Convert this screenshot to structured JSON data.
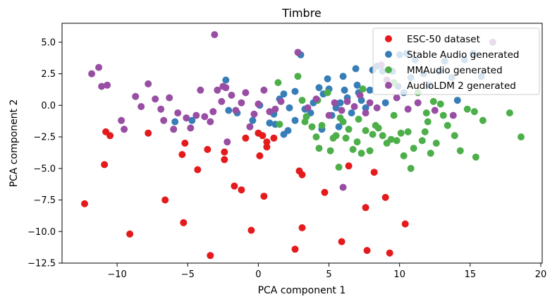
{
  "chart_data": {
    "type": "scatter",
    "title": "Timbre",
    "xlabel": "PCA component 1",
    "ylabel": "PCA component 2",
    "xlim": [
      -13.9,
      20.1
    ],
    "ylim": [
      -12.5,
      6.5
    ],
    "xticks": [
      -10,
      -5,
      0,
      5,
      10,
      15,
      20
    ],
    "xtick_labels": [
      "−10",
      "−5",
      "0",
      "5",
      "10",
      "15",
      "20"
    ],
    "yticks": [
      5,
      2.5,
      0,
      -2.5,
      -5,
      -7.5,
      -10,
      -12.5
    ],
    "ytick_labels": [
      "5.0",
      "2.5",
      "0.0",
      "−2.5",
      "−5.0",
      "−7.5",
      "−10.0",
      "−12.5"
    ],
    "grid": false,
    "legend_position": "top-right",
    "series": [
      {
        "name": "ESC-50 dataset",
        "color": "#e41a1c",
        "points": [
          [
            -12.3,
            -7.8
          ],
          [
            -10.8,
            -2.1
          ],
          [
            -10.5,
            -2.4
          ],
          [
            -10.9,
            -4.7
          ],
          [
            -9.1,
            -10.2
          ],
          [
            -7.8,
            -2.2
          ],
          [
            -6.6,
            -7.5
          ],
          [
            -5.3,
            -9.3
          ],
          [
            -5.2,
            -3.0
          ],
          [
            -5.4,
            -3.9
          ],
          [
            -4.3,
            -5.1
          ],
          [
            -3.6,
            -3.5
          ],
          [
            -3.4,
            -11.9
          ],
          [
            -2.4,
            -4.3
          ],
          [
            -2.4,
            -3.7
          ],
          [
            -1.7,
            -6.4
          ],
          [
            -1.2,
            -6.7
          ],
          [
            -0.5,
            -9.9
          ],
          [
            -0.9,
            -2.6
          ],
          [
            0,
            -2.2
          ],
          [
            0.3,
            -2.4
          ],
          [
            0.6,
            -3.3
          ],
          [
            0.6,
            -2.9
          ],
          [
            1.1,
            -2.6
          ],
          [
            0.1,
            -4.0
          ],
          [
            0.4,
            -7.2
          ],
          [
            2.6,
            -11.4
          ],
          [
            2.9,
            -5.2
          ],
          [
            3.1,
            -5.5
          ],
          [
            3.1,
            -9.7
          ],
          [
            4.7,
            -6.9
          ],
          [
            5.9,
            -10.8
          ],
          [
            6.4,
            -4.8
          ],
          [
            7.6,
            -8.1
          ],
          [
            7.7,
            -11.5
          ],
          [
            8.2,
            -5.3
          ],
          [
            9.0,
            -7.3
          ],
          [
            9.3,
            -11.7
          ],
          [
            10.4,
            -9.4
          ]
        ]
      },
      {
        "name": "Stable Audio generated",
        "color": "#377eb8",
        "points": [
          [
            -5.9,
            -1.3
          ],
          [
            -4.7,
            -1.2
          ],
          [
            -2.3,
            2.0
          ],
          [
            -2.1,
            -0.4
          ],
          [
            -1.5,
            -0.6
          ],
          [
            -0.4,
            -1.2
          ],
          [
            0.1,
            0.0
          ],
          [
            0.8,
            -1.4
          ],
          [
            1.1,
            -0.7
          ],
          [
            1.2,
            -1.5
          ],
          [
            1.5,
            0.5
          ],
          [
            1.8,
            0.9
          ],
          [
            1.8,
            -2.3
          ],
          [
            2.1,
            -2.0
          ],
          [
            2.2,
            -0.2
          ],
          [
            2.6,
            1.1
          ],
          [
            2.6,
            -1.2
          ],
          [
            3.0,
            4.0
          ],
          [
            3.3,
            -0.3
          ],
          [
            3.7,
            -0.6
          ],
          [
            3.9,
            0.2
          ],
          [
            4.3,
            1.4
          ],
          [
            4.5,
            -1.9
          ],
          [
            4.6,
            0.9
          ],
          [
            4.9,
            2.1
          ],
          [
            5.0,
            1.3
          ],
          [
            5.2,
            -0.8
          ],
          [
            5.5,
            -0.2
          ],
          [
            5.7,
            -1.7
          ],
          [
            5.8,
            0.2
          ],
          [
            6.0,
            2.3
          ],
          [
            6.1,
            1.2
          ],
          [
            6.3,
            0.6
          ],
          [
            6.6,
            -0.6
          ],
          [
            6.9,
            2.9
          ],
          [
            7.0,
            1.6
          ],
          [
            7.1,
            1.0
          ],
          [
            7.3,
            0.4
          ],
          [
            7.6,
            -0.2
          ],
          [
            7.9,
            1.2
          ],
          [
            8.1,
            2.8
          ],
          [
            8.4,
            3.1
          ],
          [
            8.8,
            2.7
          ],
          [
            9.0,
            0.2
          ],
          [
            9.5,
            2.7
          ],
          [
            9.9,
            1.5
          ],
          [
            10.0,
            4.0
          ],
          [
            10.3,
            1.0
          ],
          [
            10.5,
            4.1
          ],
          [
            10.8,
            2.2
          ],
          [
            11.1,
            3.6
          ],
          [
            11.7,
            2.5
          ],
          [
            12.1,
            1.6
          ],
          [
            12.8,
            2.7
          ],
          [
            13.2,
            3.5
          ],
          [
            13.7,
            2.2
          ],
          [
            14.1,
            0.4
          ],
          [
            14.6,
            3.6
          ],
          [
            15.2,
            4.1
          ],
          [
            15.8,
            2.3
          ]
        ]
      },
      {
        "name": "MMAudio generated",
        "color": "#4daf4a",
        "points": [
          [
            1.5,
            -1.5
          ],
          [
            1.4,
            1.8
          ],
          [
            2.8,
            2.3
          ],
          [
            3.1,
            0.4
          ],
          [
            3.3,
            -1.3
          ],
          [
            3.4,
            -0.9
          ],
          [
            3.8,
            -1.7
          ],
          [
            4.1,
            -2.5
          ],
          [
            4.2,
            0.4
          ],
          [
            4.3,
            -3.4
          ],
          [
            4.5,
            -1.6
          ],
          [
            4.9,
            1.0
          ],
          [
            5.1,
            -3.6
          ],
          [
            5.3,
            -2.6
          ],
          [
            5.5,
            -2.4
          ],
          [
            5.7,
            -4.9
          ],
          [
            5.8,
            -1.0
          ],
          [
            6.0,
            -1.3
          ],
          [
            6.2,
            -2.6
          ],
          [
            6.4,
            -1.9
          ],
          [
            6.7,
            -3.5
          ],
          [
            7.0,
            -2.9
          ],
          [
            7.1,
            -1.1
          ],
          [
            7.3,
            -3.8
          ],
          [
            7.4,
            1.3
          ],
          [
            7.6,
            -2.0
          ],
          [
            7.9,
            -3.6
          ],
          [
            8.1,
            -2.3
          ],
          [
            8.3,
            -1.6
          ],
          [
            8.5,
            -1.8
          ],
          [
            8.8,
            -2.4
          ],
          [
            9.1,
            -3.0
          ],
          [
            9.4,
            -2.7
          ],
          [
            9.6,
            -0.8
          ],
          [
            9.8,
            -2.8
          ],
          [
            10.1,
            -2.2
          ],
          [
            10.3,
            -4.0
          ],
          [
            10.6,
            -2.1
          ],
          [
            10.8,
            -5.0
          ],
          [
            11.0,
            -3.4
          ],
          [
            11.3,
            1.0
          ],
          [
            11.6,
            -2.8
          ],
          [
            11.8,
            -2.1
          ],
          [
            12.0,
            -1.3
          ],
          [
            12.2,
            -3.8
          ],
          [
            12.6,
            -3.0
          ],
          [
            12.9,
            0.1
          ],
          [
            13.1,
            -0.8
          ],
          [
            13.4,
            -1.6
          ],
          [
            13.9,
            -2.4
          ],
          [
            14.3,
            -3.6
          ],
          [
            14.8,
            -0.3
          ],
          [
            15.3,
            -0.5
          ],
          [
            15.4,
            -4.1
          ],
          [
            15.9,
            -1.2
          ],
          [
            17.8,
            -0.6
          ],
          [
            18.6,
            -2.5
          ],
          [
            9.6,
            1.8
          ],
          [
            11.9,
            -0.6
          ],
          [
            12.4,
            0.3
          ]
        ]
      },
      {
        "name": "AudioLDM 2 generated",
        "color": "#984ea3",
        "points": [
          [
            -11.8,
            2.5
          ],
          [
            -11.3,
            3.0
          ],
          [
            -11.1,
            1.5
          ],
          [
            -10.7,
            1.6
          ],
          [
            -9.7,
            -1.2
          ],
          [
            -9.5,
            -1.9
          ],
          [
            -8.7,
            0.7
          ],
          [
            -8.3,
            -0.1
          ],
          [
            -7.8,
            1.7
          ],
          [
            -7.3,
            0.5
          ],
          [
            -6.9,
            -0.3
          ],
          [
            -6.7,
            -1.2
          ],
          [
            -6.3,
            0.6
          ],
          [
            -6.0,
            -1.9
          ],
          [
            -5.7,
            -0.6
          ],
          [
            -5.1,
            -1.0
          ],
          [
            -4.8,
            -1.8
          ],
          [
            -4.4,
            -0.8
          ],
          [
            -4.1,
            1.2
          ],
          [
            -3.8,
            -0.9
          ],
          [
            -3.4,
            -1.3
          ],
          [
            -3.2,
            -0.5
          ],
          [
            -2.9,
            1.2
          ],
          [
            -2.6,
            0.3
          ],
          [
            -2.3,
            1.4
          ],
          [
            -1.9,
            0.8
          ],
          [
            -1.6,
            -0.4
          ],
          [
            -1.2,
            0.2
          ],
          [
            -0.9,
            1.0
          ],
          [
            -0.6,
            -1.7
          ],
          [
            -0.3,
            -0.7
          ],
          [
            0.0,
            0.1
          ],
          [
            0.4,
            1.2
          ],
          [
            0.8,
            -0.5
          ],
          [
            1.2,
            -0.3
          ],
          [
            1.6,
            0.3
          ],
          [
            -3.1,
            5.6
          ],
          [
            -2.5,
            1.5
          ],
          [
            2.8,
            4.2
          ],
          [
            3.5,
            -0.2
          ],
          [
            4.1,
            0.5
          ],
          [
            5.0,
            -0.8
          ],
          [
            5.4,
            0.2
          ],
          [
            5.9,
            -0.4
          ],
          [
            6.3,
            0.3
          ],
          [
            6.8,
            -0.1
          ],
          [
            7.2,
            0.8
          ],
          [
            7.6,
            -0.6
          ],
          [
            7.9,
            0.2
          ],
          [
            8.4,
            -0.2
          ],
          [
            9.1,
            2.0
          ],
          [
            9.8,
            0.6
          ],
          [
            10.6,
            -0.3
          ],
          [
            11.3,
            0.2
          ],
          [
            12.5,
            -0.4
          ],
          [
            13.8,
            -0.8
          ],
          [
            16.6,
            5.0
          ],
          [
            8.7,
            3.2
          ],
          [
            6.0,
            -6.5
          ],
          [
            -2.2,
            -2.9
          ]
        ]
      }
    ]
  }
}
